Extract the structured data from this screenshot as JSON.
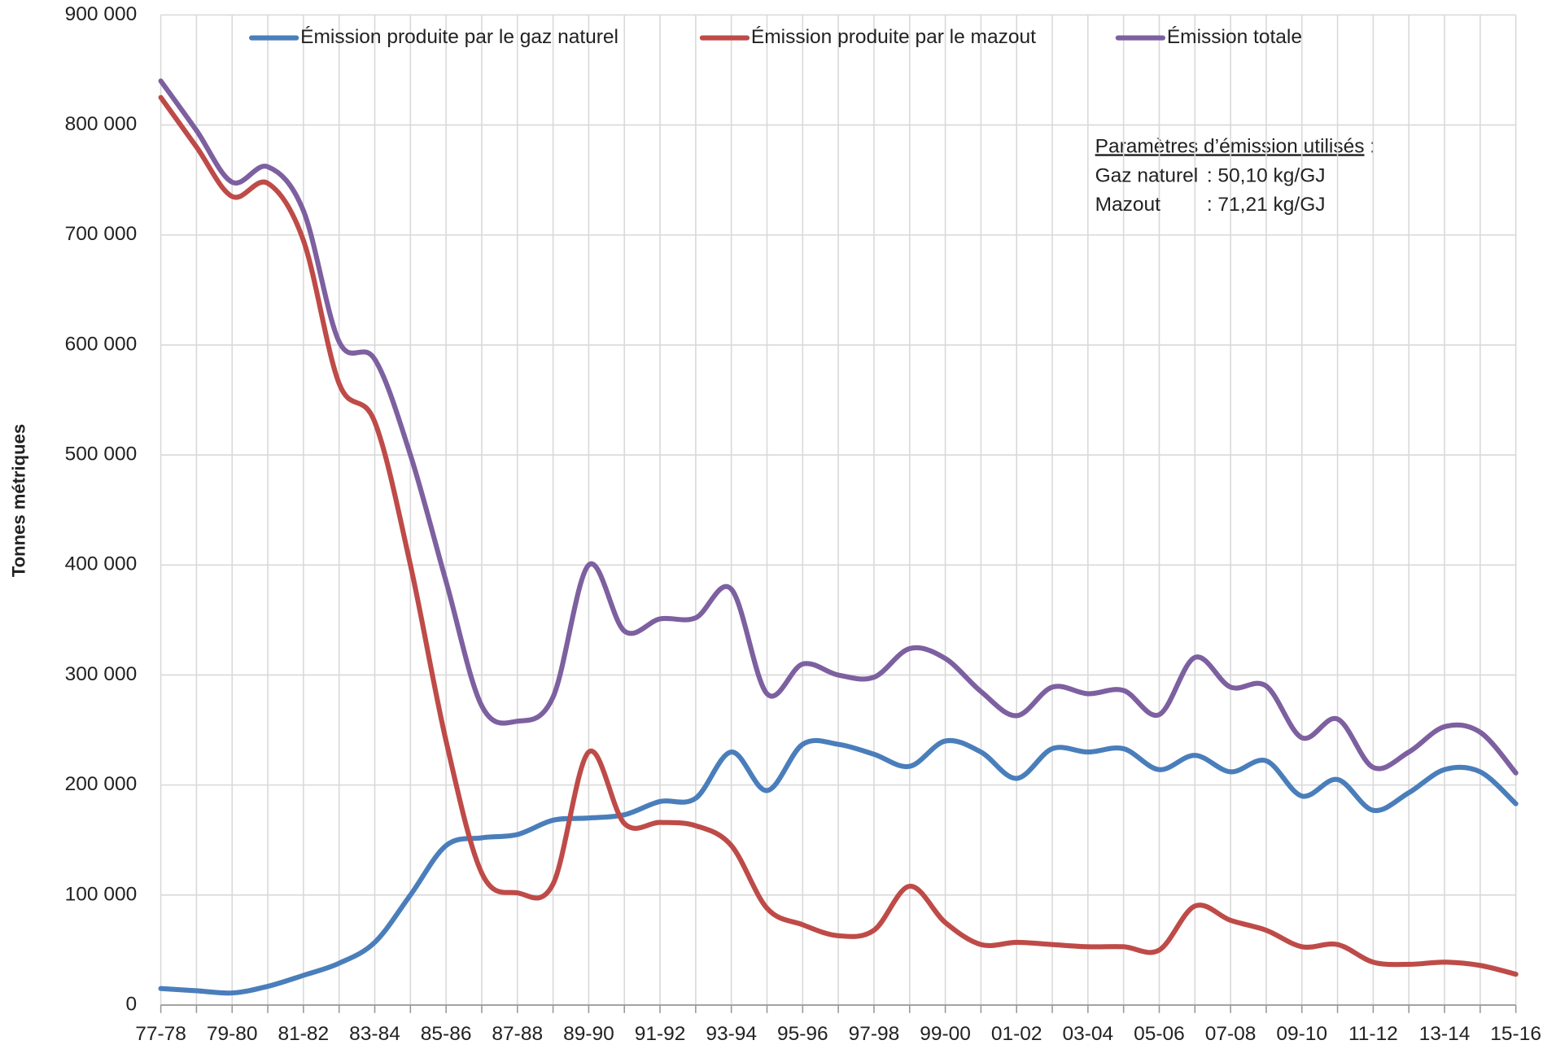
{
  "chart_data": {
    "type": "line",
    "y_label": "Tonnes métriques",
    "categories": [
      "77-78",
      null,
      "79-80",
      null,
      "81-82",
      null,
      "83-84",
      null,
      "85-86",
      null,
      "87-88",
      null,
      "89-90",
      null,
      "91-92",
      null,
      "93-94",
      null,
      "95-96",
      null,
      "97-98",
      null,
      "99-00",
      null,
      "01-02",
      null,
      "03-04",
      null,
      "05-06",
      null,
      "07-08",
      null,
      "09-10",
      null,
      "11-12",
      null,
      "13-14",
      null,
      "15-16"
    ],
    "series": [
      {
        "name": "Émission produite par le gaz naturel",
        "color": "#4a7ebb",
        "values": [
          15000,
          13000,
          11000,
          17000,
          27000,
          38000,
          57000,
          100000,
          145000,
          152000,
          155000,
          168000,
          170000,
          173000,
          185000,
          188000,
          230000,
          195000,
          237000,
          237000,
          228000,
          217000,
          240000,
          230000,
          206000,
          233000,
          230000,
          233000,
          214000,
          227000,
          212000,
          222000,
          190000,
          205000,
          177000,
          193000,
          214000,
          212000,
          183000
        ]
      },
      {
        "name": "Émission produite par le mazout",
        "color": "#be4b48",
        "values": [
          825000,
          780000,
          735000,
          747000,
          695000,
          565000,
          530000,
          400000,
          240000,
          120000,
          102000,
          110000,
          230000,
          165000,
          166000,
          163000,
          145000,
          88000,
          73000,
          63000,
          68000,
          108000,
          75000,
          55000,
          57000,
          55000,
          53000,
          53000,
          50000,
          90000,
          77000,
          68000,
          53000,
          55000,
          39000,
          37000,
          39000,
          36000,
          28000
        ]
      },
      {
        "name": "Émission totale",
        "color": "#7d60a0",
        "values": [
          840000,
          795000,
          748000,
          762000,
          722000,
          603000,
          587000,
          500000,
          385000,
          272000,
          258000,
          280000,
          400000,
          340000,
          351000,
          352000,
          378000,
          283000,
          310000,
          300000,
          298000,
          324000,
          315000,
          285000,
          263000,
          289000,
          283000,
          286000,
          264000,
          316000,
          289000,
          290000,
          243000,
          260000,
          216000,
          230000,
          253000,
          248000,
          211000
        ]
      }
    ],
    "ylim": [
      0,
      900000
    ],
    "yticks": [
      0,
      {
        "value": 100000,
        "label": "100 000"
      },
      {
        "value": 200000,
        "label": "200 000"
      },
      {
        "value": 300000,
        "label": "300 000"
      },
      {
        "value": 400000,
        "label": "400 000"
      },
      {
        "value": 500000,
        "label": "500 000"
      },
      {
        "value": 600000,
        "label": "600 000"
      },
      {
        "value": 700000,
        "label": "700 000"
      },
      {
        "value": 800000,
        "label": "800 000"
      },
      {
        "value": 900000,
        "label": "900 000"
      }
    ],
    "grid": true,
    "legend": "top",
    "annotation": {
      "heading": "Paramètres d’émission utilisés",
      "heading_suffix": " :",
      "lines": [
        [
          "Gaz naturel",
          ": 50,10 kg/GJ"
        ],
        [
          "Mazout",
          ": 71,21 kg/GJ"
        ]
      ]
    }
  }
}
